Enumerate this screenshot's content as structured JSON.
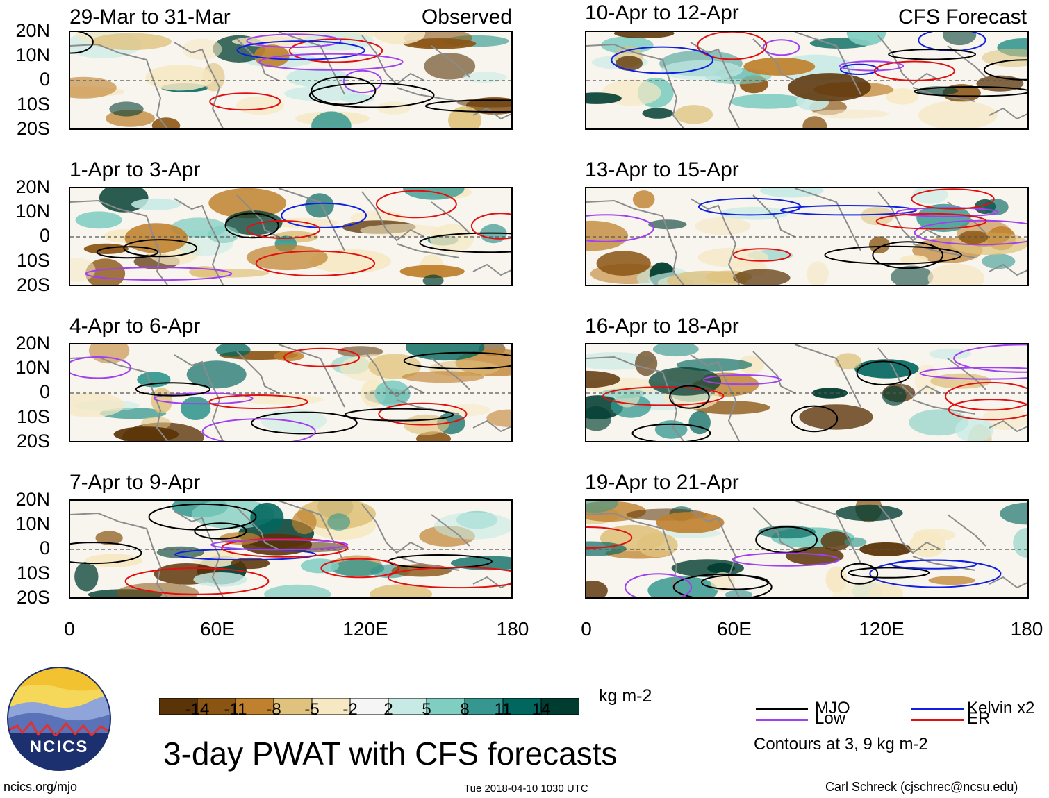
{
  "colors": {
    "scale": [
      "#5a3307",
      "#8a5413",
      "#bf812d",
      "#dfc27d",
      "#f6e8c3",
      "#f5f5f5",
      "#c7eae5",
      "#80cdc1",
      "#35978f",
      "#01665e",
      "#003c30"
    ],
    "mjo": "#000000",
    "low": "#a040f0",
    "kelvin": "#1020e0",
    "er": "#e01010",
    "land": "#8c8c8c"
  },
  "observed_label": "Observed",
  "forecast_label": "CFS Forecast",
  "lat_labels": [
    "20N",
    "10N",
    "0",
    "10S",
    "20S"
  ],
  "lon_labels": [
    "0",
    "60E",
    "120E",
    "180"
  ],
  "panels": [
    {
      "id": "p1",
      "title": "29-Mar to 31-Mar",
      "kind": "observed"
    },
    {
      "id": "p2",
      "title": "1-Apr to 3-Apr",
      "kind": "observed"
    },
    {
      "id": "p3",
      "title": "4-Apr to 6-Apr",
      "kind": "observed"
    },
    {
      "id": "p4",
      "title": "7-Apr to 9-Apr",
      "kind": "observed"
    },
    {
      "id": "p5",
      "title": "10-Apr to 12-Apr",
      "kind": "forecast"
    },
    {
      "id": "p6",
      "title": "13-Apr to 15-Apr",
      "kind": "forecast"
    },
    {
      "id": "p7",
      "title": "16-Apr to 18-Apr",
      "kind": "forecast"
    },
    {
      "id": "p8",
      "title": "19-Apr to 21-Apr",
      "kind": "forecast"
    }
  ],
  "colorbar": {
    "labels": [
      "-14",
      "-11",
      "-8",
      "-5",
      "-2",
      "2",
      "5",
      "8",
      "11",
      "14"
    ],
    "units": "kg m-2"
  },
  "main_title": "3-day PWAT with CFS forecasts",
  "legend": {
    "mjo": "MJO",
    "kelvin": "Kelvin x2",
    "low": "Low",
    "er": "ER",
    "note": "Contours at 3, 9 kg m-2"
  },
  "logo_text": "NCICS",
  "footer": {
    "url": "ncics.org/mjo",
    "timestamp": "Tue 2018-04-10 1030 UTC",
    "credit": "Carl Schreck (cjschrec@ncsu.edu)"
  }
}
